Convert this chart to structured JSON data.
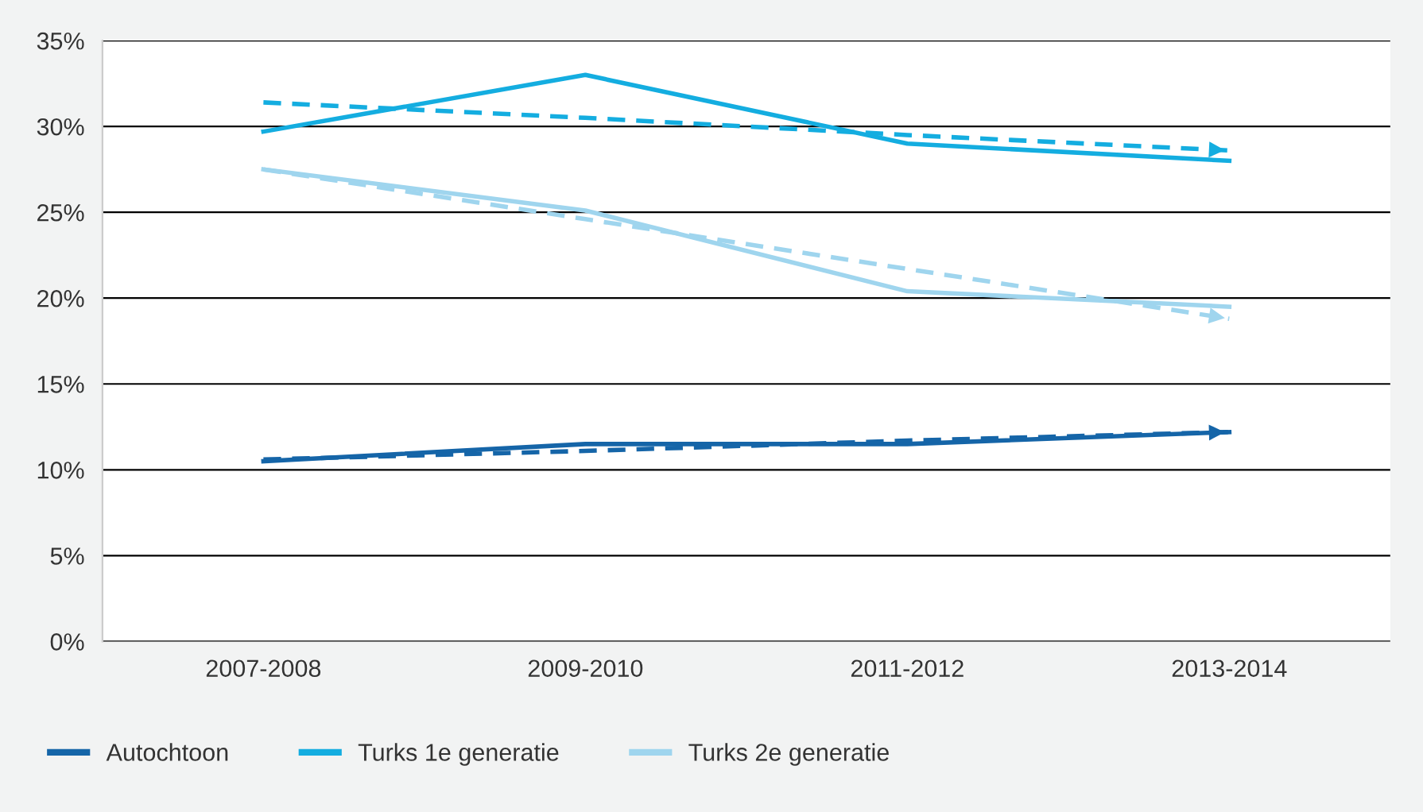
{
  "chart_data": {
    "type": "line",
    "categories": [
      "2007-2008",
      "2009-2010",
      "2011-2012",
      "2013-2014"
    ],
    "ylim": [
      0,
      35
    ],
    "yticks": [
      {
        "value": 0,
        "label": "0%"
      },
      {
        "value": 5,
        "label": "5%"
      },
      {
        "value": 10,
        "label": "10%"
      },
      {
        "value": 15,
        "label": "15%"
      },
      {
        "value": 20,
        "label": "20%"
      },
      {
        "value": 25,
        "label": "25%"
      },
      {
        "value": 30,
        "label": "30%"
      },
      {
        "value": 35,
        "label": "35%"
      }
    ],
    "grid": "y",
    "legend": "bottom",
    "series": [
      {
        "name": "Autochtoon",
        "color": "#1565a8",
        "values": [
          10.5,
          11.5,
          11.5,
          12.2
        ]
      },
      {
        "name": "Turks 1e generatie",
        "color": "#14ade0",
        "values": [
          29.7,
          33.0,
          29.0,
          28.0
        ]
      },
      {
        "name": "Turks 2e generatie",
        "color": "#9fd5ee",
        "values": [
          27.5,
          25.1,
          20.4,
          19.5
        ]
      },
      {
        "color": "#1565a8",
        "values": [
          10.6,
          11.1,
          11.7,
          12.2
        ],
        "line_style": "dashed"
      },
      {
        "color": "#14ade0",
        "values": [
          31.4,
          30.5,
          29.5,
          28.6
        ],
        "line_style": "dashed"
      },
      {
        "color": "#9fd5ee",
        "values": [
          27.5,
          24.6,
          21.7,
          18.8
        ],
        "line_style": "dashed"
      }
    ]
  }
}
